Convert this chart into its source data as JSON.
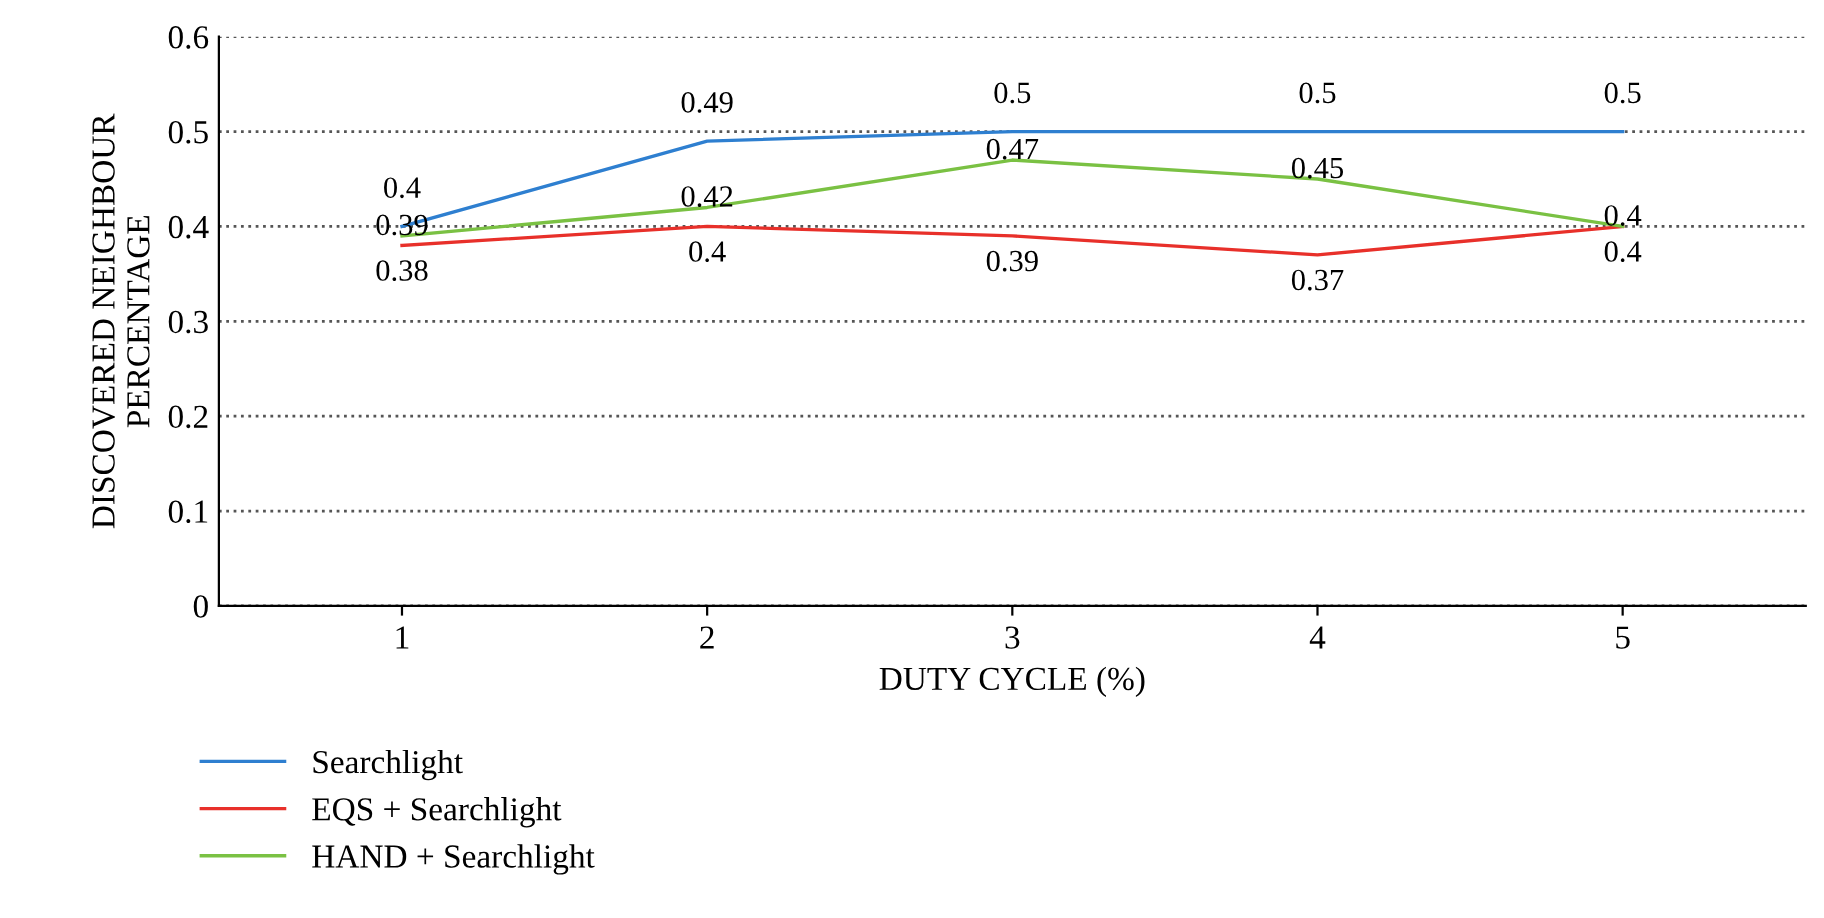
{
  "chart_data": {
    "type": "line",
    "xlabel": "DUTY CYCLE (%)",
    "ylabel": "DISCOVERED NEIGHBOUR\nPERCENTAGE",
    "categories": [
      "1",
      "2",
      "3",
      "4",
      "5"
    ],
    "series": [
      {
        "name": "Searchlight",
        "color": "#2e7fd0",
        "values": [
          0.4,
          0.49,
          0.5,
          0.5,
          0.5
        ]
      },
      {
        "name": "EQS + Searchlight",
        "color": "#e8302a",
        "values": [
          0.38,
          0.4,
          0.39,
          0.37,
          0.4
        ]
      },
      {
        "name": "HAND + Searchlight",
        "color": "#7ac143",
        "values": [
          0.39,
          0.42,
          0.47,
          0.45,
          0.4
        ]
      }
    ],
    "ylim": [
      0,
      0.6
    ],
    "yticks": [
      0,
      0.1,
      0.2,
      0.3,
      0.4,
      0.5,
      0.6
    ],
    "grid": "y",
    "legend": "bottom left",
    "marker": "none",
    "line_style": "solid",
    "data_labels": true
  }
}
